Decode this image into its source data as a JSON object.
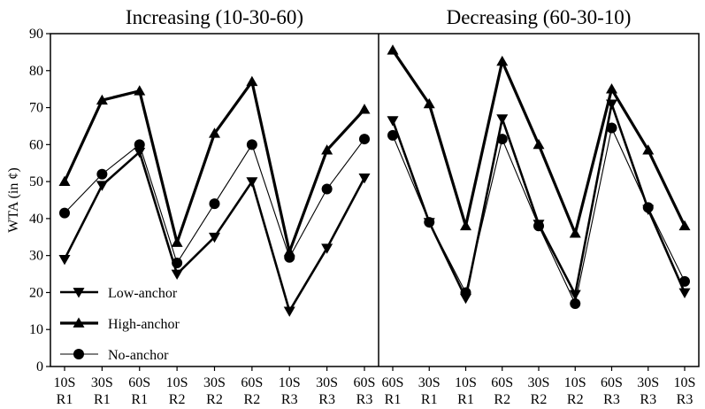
{
  "chart_data": {
    "type": "line",
    "ylabel": "WTA (in ¢)",
    "ylim": [
      0,
      90
    ],
    "yticks": [
      0,
      10,
      20,
      30,
      40,
      50,
      60,
      70,
      80,
      90
    ],
    "grid": false,
    "legend_placement": "bottom-left",
    "legend": [
      {
        "series": "Low-anchor",
        "label": "Low-anchor",
        "marker": "triangle-down",
        "weight": "thick"
      },
      {
        "series": "High-anchor",
        "label": "High-anchor",
        "marker": "triangle-up",
        "weight": "thick"
      },
      {
        "series": "No-anchor",
        "label": "No-anchor",
        "marker": "circle",
        "weight": "thin"
      }
    ],
    "panels": [
      {
        "title": "Increasing (10-30-60)",
        "categories": [
          [
            "10S",
            "R1"
          ],
          [
            "30S",
            "R1"
          ],
          [
            "60S",
            "R1"
          ],
          [
            "10S",
            "R2"
          ],
          [
            "30S",
            "R2"
          ],
          [
            "60S",
            "R2"
          ],
          [
            "10S",
            "R3"
          ],
          [
            "30S",
            "R3"
          ],
          [
            "60S",
            "R3"
          ]
        ],
        "series": [
          {
            "name": "Low-anchor",
            "values": [
              29,
              49,
              58,
              25,
              35,
              50,
              15,
              32,
              51
            ]
          },
          {
            "name": "High-anchor",
            "values": [
              50,
              72,
              74.5,
              33.5,
              63,
              77,
              31,
              58.5,
              69.5
            ]
          },
          {
            "name": "No-anchor",
            "values": [
              41.5,
              52,
              60,
              28,
              44,
              60,
              29.5,
              48,
              61.5
            ]
          }
        ]
      },
      {
        "title": "Decreasing (60-30-10)",
        "categories": [
          [
            "60S",
            "R1"
          ],
          [
            "30S",
            "R1"
          ],
          [
            "10S",
            "R1"
          ],
          [
            "60S",
            "R2"
          ],
          [
            "30S",
            "R2"
          ],
          [
            "10S",
            "R2"
          ],
          [
            "60S",
            "R3"
          ],
          [
            "30S",
            "R3"
          ],
          [
            "10S",
            "R3"
          ]
        ],
        "series": [
          {
            "name": "Low-anchor",
            "values": [
              66.5,
              39,
              18.5,
              67,
              38.5,
              19.5,
              71,
              42.5,
              20
            ]
          },
          {
            "name": "High-anchor",
            "values": [
              85.5,
              71,
              38,
              82.5,
              60,
              36,
              75,
              58.5,
              38
            ]
          },
          {
            "name": "No-anchor",
            "values": [
              62.5,
              39,
              20,
              61.5,
              38,
              17,
              64.5,
              43,
              23
            ]
          }
        ]
      }
    ]
  }
}
